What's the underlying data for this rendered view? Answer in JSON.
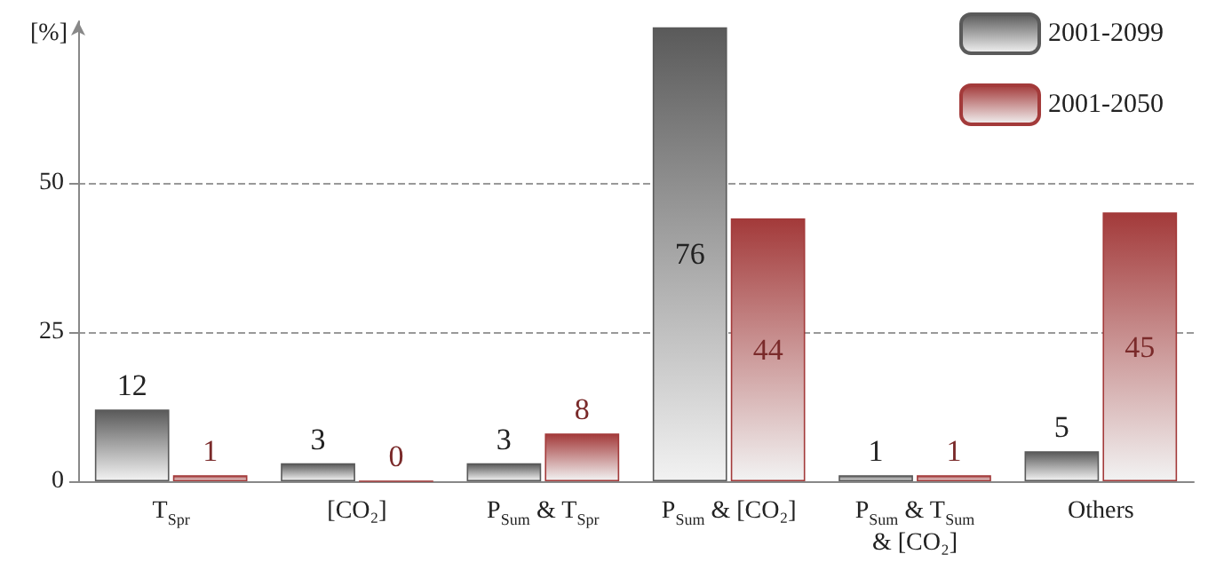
{
  "chart_data": {
    "type": "bar",
    "ylabel": "[%]",
    "categories": [
      "T$_{Spr}$",
      "[CO₂]",
      "P$_{Sum}$ & T$_{Spr}$",
      "P$_{Sum}$ & [CO₂]",
      "P$_{Sum}$ & T$_{Sum}$\n& [CO₂]",
      "Others"
    ],
    "series": [
      {
        "name": "2001-2099",
        "color": "#5a5a5a",
        "values": [
          12,
          3,
          3,
          76,
          1,
          5
        ]
      },
      {
        "name": "2001-2050",
        "color": "#a33a3a",
        "values": [
          1,
          0,
          8,
          44,
          1,
          45
        ]
      }
    ],
    "ylim": [
      0,
      77
    ],
    "yticks": [
      0,
      25,
      50
    ],
    "grid": "y",
    "data_labels": true,
    "legend": "top right"
  }
}
